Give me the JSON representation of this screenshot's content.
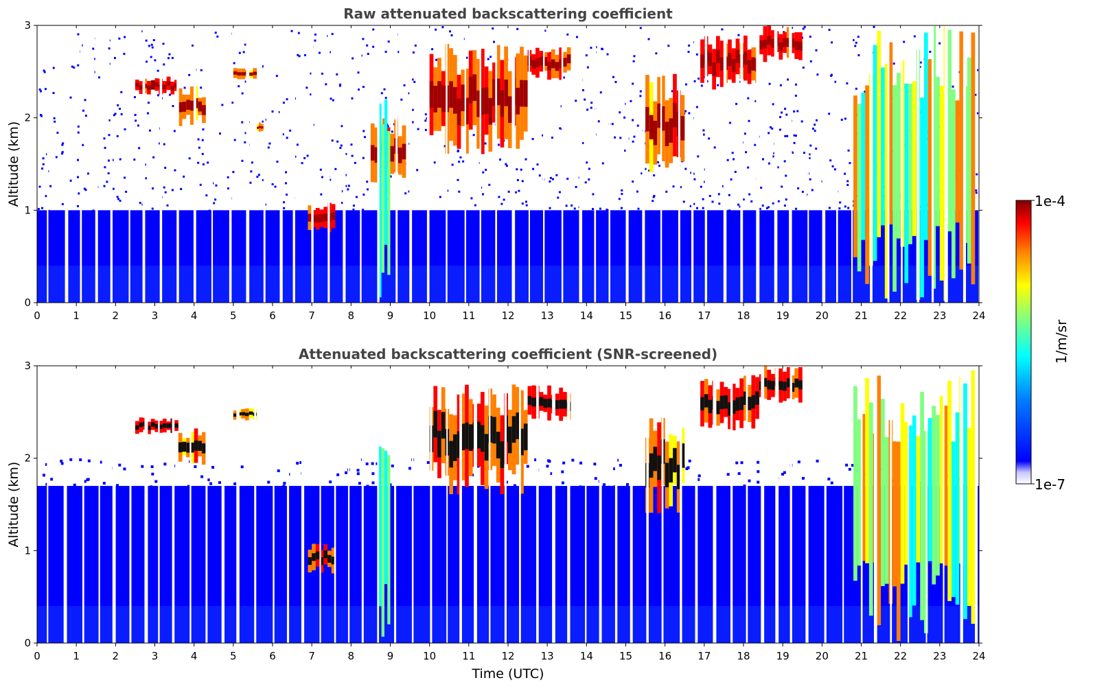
{
  "chart_data": [
    {
      "type": "heatmap",
      "title": "Raw attenuated backscattering coefficient",
      "xlabel": "",
      "ylabel": "Altitude (km)",
      "xlim": [
        0,
        24
      ],
      "ylim": [
        0,
        3
      ],
      "xticks": [
        "0",
        "1",
        "2",
        "3",
        "4",
        "5",
        "6",
        "7",
        "8",
        "9",
        "10",
        "11",
        "12",
        "13",
        "14",
        "15",
        "16",
        "17",
        "18",
        "19",
        "20",
        "21",
        "22",
        "23",
        "24"
      ],
      "yticks": [
        "0",
        "1",
        "2",
        "3"
      ],
      "screened": false,
      "features": [
        {
          "kind": "cloud",
          "t0": 2.5,
          "t1": 3.6,
          "z0": 2.25,
          "z1": 2.45,
          "level": 0.95
        },
        {
          "kind": "cloud",
          "t0": 3.6,
          "t1": 4.3,
          "z0": 1.9,
          "z1": 2.35,
          "level": 0.85
        },
        {
          "kind": "cloud",
          "t0": 5.0,
          "t1": 5.6,
          "z0": 2.4,
          "z1": 2.55,
          "level": 0.8
        },
        {
          "kind": "cloud",
          "t0": 5.6,
          "t1": 5.8,
          "z0": 1.85,
          "z1": 1.95,
          "level": 0.8
        },
        {
          "kind": "cloud",
          "t0": 6.9,
          "t1": 7.6,
          "z0": 0.75,
          "z1": 1.1,
          "level": 0.9
        },
        {
          "kind": "cloud",
          "t0": 8.5,
          "t1": 9.4,
          "z0": 1.3,
          "z1": 2.0,
          "level": 0.85
        },
        {
          "kind": "cloud",
          "t0": 10.0,
          "t1": 12.5,
          "z0": 1.6,
          "z1": 2.8,
          "level": 0.9
        },
        {
          "kind": "cloud",
          "t0": 12.5,
          "t1": 13.6,
          "z0": 2.4,
          "z1": 2.8,
          "level": 0.9
        },
        {
          "kind": "cloud",
          "t0": 15.5,
          "t1": 16.5,
          "z0": 1.4,
          "z1": 2.5,
          "level": 0.85
        },
        {
          "kind": "cloud",
          "t0": 16.9,
          "t1": 18.4,
          "z0": 2.3,
          "z1": 2.9,
          "level": 0.95
        },
        {
          "kind": "cloud",
          "t0": 18.4,
          "t1": 19.5,
          "z0": 2.6,
          "z1": 3.0,
          "level": 0.95
        },
        {
          "kind": "plume",
          "t0": 8.7,
          "t1": 9.0,
          "z0": 0.0,
          "z1": 2.2,
          "level": 0.6
        },
        {
          "kind": "aerosol",
          "t0": 20.8,
          "t1": 23.9,
          "z0": 0.0,
          "z1": 3.0,
          "level": 0.6
        }
      ]
    },
    {
      "type": "heatmap",
      "title": "Attenuated backscattering coefficient (SNR-screened)",
      "xlabel": "Time (UTC)",
      "ylabel": "Altitude (km)",
      "xlim": [
        0,
        24
      ],
      "ylim": [
        0,
        3
      ],
      "xticks": [
        "0",
        "1",
        "2",
        "3",
        "4",
        "5",
        "6",
        "7",
        "8",
        "9",
        "10",
        "11",
        "12",
        "13",
        "14",
        "15",
        "16",
        "17",
        "18",
        "19",
        "20",
        "21",
        "22",
        "23",
        "24"
      ],
      "yticks": [
        "0",
        "1",
        "2",
        "3"
      ],
      "screened": true,
      "features": [
        {
          "kind": "cloud",
          "t0": 2.5,
          "t1": 3.6,
          "z0": 2.25,
          "z1": 2.45,
          "level": 0.95
        },
        {
          "kind": "cloud",
          "t0": 3.6,
          "t1": 4.3,
          "z0": 1.9,
          "z1": 2.35,
          "level": 0.85
        },
        {
          "kind": "cloud",
          "t0": 5.0,
          "t1": 5.6,
          "z0": 2.4,
          "z1": 2.55,
          "level": 0.8
        },
        {
          "kind": "cloud",
          "t0": 6.9,
          "t1": 7.6,
          "z0": 0.75,
          "z1": 1.1,
          "level": 0.9
        },
        {
          "kind": "cloud",
          "t0": 10.0,
          "t1": 12.5,
          "z0": 1.6,
          "z1": 2.8,
          "level": 0.9
        },
        {
          "kind": "cloud",
          "t0": 12.5,
          "t1": 13.6,
          "z0": 2.4,
          "z1": 2.8,
          "level": 0.9
        },
        {
          "kind": "cloud",
          "t0": 15.5,
          "t1": 16.5,
          "z0": 1.4,
          "z1": 2.5,
          "level": 0.85
        },
        {
          "kind": "cloud",
          "t0": 16.9,
          "t1": 18.4,
          "z0": 2.3,
          "z1": 2.9,
          "level": 0.95
        },
        {
          "kind": "cloud",
          "t0": 18.4,
          "t1": 19.5,
          "z0": 2.6,
          "z1": 3.0,
          "level": 0.95
        },
        {
          "kind": "plume",
          "t0": 8.7,
          "t1": 9.0,
          "z0": 0.0,
          "z1": 2.2,
          "level": 0.6
        },
        {
          "kind": "aerosol",
          "t0": 20.8,
          "t1": 23.9,
          "z0": 0.0,
          "z1": 3.0,
          "level": 0.6
        }
      ]
    }
  ],
  "colorbar": {
    "label": "1/m/sr",
    "max_label": "1e-4",
    "min_label": "1e-7",
    "colormap": "jet",
    "colors": [
      "#ffffff",
      "#0000cc",
      "#0000ff",
      "#0080ff",
      "#00ffff",
      "#80ff80",
      "#ffff00",
      "#ff8000",
      "#ff0000",
      "#800000"
    ]
  }
}
